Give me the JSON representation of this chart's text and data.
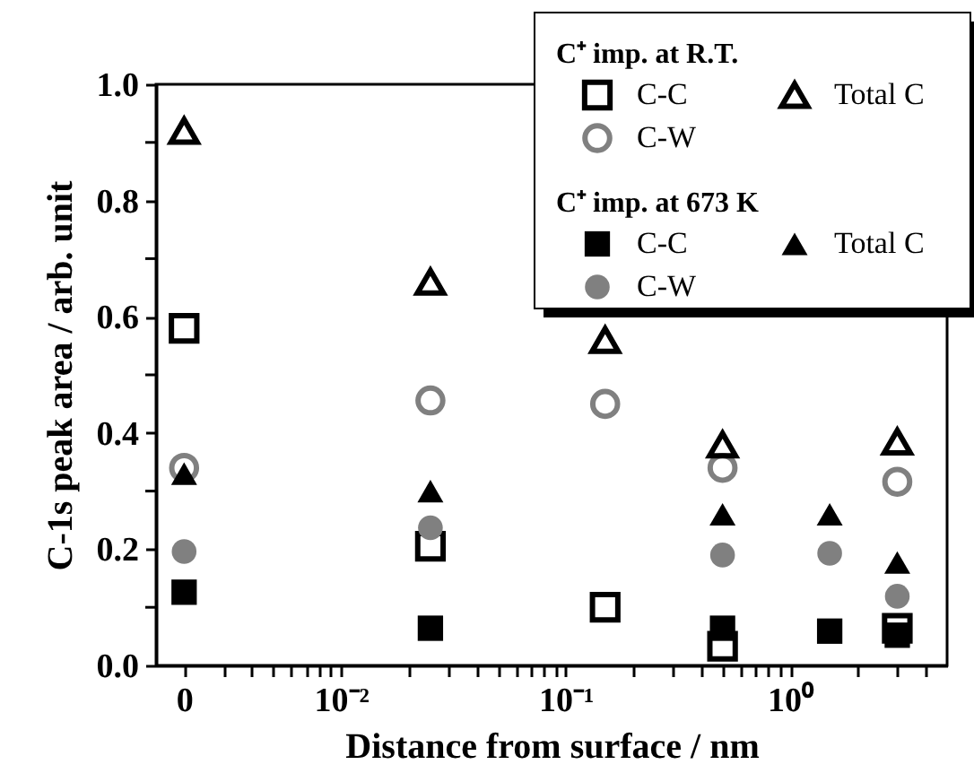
{
  "chart_data": {
    "type": "scatter",
    "xlabel": "Distance from surface / nm",
    "ylabel": "C-1s peak area / arb. unit",
    "legend_title": [
      "C⁺ imp. at R.T.",
      "C⁺ imp. at 673 K"
    ],
    "log": "x",
    "grid": false,
    "legend": "top right",
    "xlim": [
      0.0015,
      5
    ],
    "ylim": [
      0,
      1
    ],
    "xticks": [
      {
        "value": 0.002,
        "label": "0"
      },
      {
        "value": 0.003,
        "label": null
      },
      {
        "value": 0.004,
        "label": null
      },
      {
        "value": 0.005,
        "label": null
      },
      {
        "value": 0.006,
        "label": null
      },
      {
        "value": 0.007,
        "label": null
      },
      {
        "value": 0.008,
        "label": null
      },
      {
        "value": 0.009,
        "label": null
      },
      {
        "value": 0.01,
        "label": "10⁻²"
      },
      {
        "value": 0.02,
        "label": null
      },
      {
        "value": 0.03,
        "label": null
      },
      {
        "value": 0.04,
        "label": null
      },
      {
        "value": 0.05,
        "label": null
      },
      {
        "value": 0.06,
        "label": null
      },
      {
        "value": 0.07,
        "label": null
      },
      {
        "value": 0.08,
        "label": null
      },
      {
        "value": 0.09,
        "label": null
      },
      {
        "value": 0.1,
        "label": "10⁻¹"
      },
      {
        "value": 0.2,
        "label": null
      },
      {
        "value": 0.3,
        "label": null
      },
      {
        "value": 0.4,
        "label": null
      },
      {
        "value": 0.5,
        "label": null
      },
      {
        "value": 0.6,
        "label": null
      },
      {
        "value": 0.7,
        "label": null
      },
      {
        "value": 0.8,
        "label": null
      },
      {
        "value": 0.9,
        "label": null
      },
      {
        "value": 1,
        "label": "10⁰"
      },
      {
        "value": 2,
        "label": null
      },
      {
        "value": 3,
        "label": null
      },
      {
        "value": 4,
        "label": null
      }
    ],
    "yticks": [
      {
        "value": 0,
        "label": "0.0"
      },
      {
        "value": 0.1,
        "label": null
      },
      0.2,
      {
        "value": 0.3,
        "label": null
      },
      0.4,
      {
        "value": 0.5,
        "label": null
      },
      0.6,
      {
        "value": 0.7,
        "label": null
      },
      0.8,
      {
        "value": 0.9,
        "label": null
      },
      {
        "value": 1,
        "label": "1.0"
      }
    ],
    "series": [
      {
        "name": "C-C",
        "marker": "square",
        "color": "#000000",
        "x": [
          0.002,
          0.025,
          0.15,
          0.5,
          3
        ],
        "values": [
          0.58,
          0.205,
          0.1,
          0.033,
          0.064
        ]
      },
      {
        "name": "C-W",
        "marker": "circle",
        "color": "#808080",
        "x": [
          0.002,
          0.025,
          0.15,
          0.5,
          3
        ],
        "values": [
          0.34,
          0.456,
          0.45,
          0.34,
          0.316
        ]
      },
      {
        "name": "Total C",
        "marker": "triangle",
        "color": "#000000",
        "x": [
          0.002,
          0.025,
          0.15,
          0.5,
          3
        ],
        "values": [
          0.92,
          0.66,
          0.56,
          0.38,
          0.385
        ]
      },
      {
        "name": "C-C",
        "marker": "square",
        "color": "#000000",
        "x": [
          0.002,
          0.025,
          0.5,
          1.5,
          3
        ],
        "values": [
          0.126,
          0.064,
          0.064,
          0.059,
          0.052
        ]
      },
      {
        "name": "C-W",
        "marker": "circle",
        "color": "#808080",
        "x": [
          0.002,
          0.025,
          0.5,
          1.5,
          3
        ],
        "values": [
          0.196,
          0.237,
          0.19,
          0.193,
          0.119
        ]
      },
      {
        "name": "Total C",
        "marker": "triangle",
        "color": "#000000",
        "x": [
          0.002,
          0.025,
          0.5,
          1.5,
          3
        ],
        "values": [
          0.33,
          0.3,
          0.26,
          0.26,
          0.177
        ]
      }
    ]
  }
}
